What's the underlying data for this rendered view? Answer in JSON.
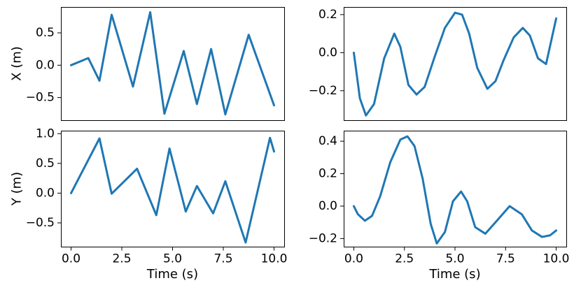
{
  "chart_data": [
    {
      "type": "line",
      "panel": "top-left",
      "ylabel": "X (m)",
      "xlabel": "",
      "xlim": [
        -0.5,
        10.5
      ],
      "ylim": [
        -0.85,
        0.9
      ],
      "yticks": [
        0.5,
        0.0,
        -0.5
      ],
      "ytick_labels": [
        "0.5",
        "0.0",
        "−0.5"
      ],
      "xticks": [],
      "xtick_labels": [],
      "color": "#1f77b4",
      "series": [
        {
          "x": [
            0.0,
            0.85,
            1.4,
            2.0,
            3.05,
            3.9,
            4.6,
            5.55,
            6.2,
            6.9,
            7.6,
            8.75,
            10.0
          ],
          "y": [
            0.0,
            0.11,
            -0.24,
            0.78,
            -0.33,
            0.82,
            -0.75,
            0.22,
            -0.6,
            0.25,
            -0.76,
            0.47,
            -0.62
          ]
        }
      ]
    },
    {
      "type": "line",
      "panel": "top-right",
      "ylabel": "",
      "xlabel": "",
      "xlim": [
        -0.5,
        10.5
      ],
      "ylim": [
        -0.355,
        0.24
      ],
      "yticks": [
        0.2,
        0.0,
        -0.2
      ],
      "ytick_labels": [
        "0.2",
        "0.0",
        "−0.2"
      ],
      "xticks": [],
      "xtick_labels": [],
      "color": "#1f77b4",
      "series": [
        {
          "x": [
            0.0,
            0.3,
            0.6,
            1.0,
            1.5,
            2.0,
            2.3,
            2.7,
            3.1,
            3.5,
            4.0,
            4.5,
            5.0,
            5.35,
            5.7,
            6.1,
            6.6,
            7.0,
            7.4,
            7.9,
            8.35,
            8.7,
            9.1,
            9.5,
            10.0
          ],
          "y": [
            0.0,
            -0.24,
            -0.33,
            -0.27,
            -0.03,
            0.1,
            0.03,
            -0.17,
            -0.22,
            -0.18,
            -0.02,
            0.13,
            0.21,
            0.2,
            0.1,
            -0.08,
            -0.19,
            -0.15,
            -0.04,
            0.08,
            0.13,
            0.09,
            -0.03,
            -0.06,
            0.18
          ]
        }
      ]
    },
    {
      "type": "line",
      "panel": "bottom-left",
      "ylabel": "Y (m)",
      "xlabel": "Time (s)",
      "xlim": [
        -0.5,
        10.5
      ],
      "ylim": [
        -0.9,
        1.05
      ],
      "yticks": [
        1.0,
        0.5,
        0.0,
        -0.5
      ],
      "ytick_labels": [
        "1.0",
        "0.5",
        "0.0",
        "−0.5"
      ],
      "xticks": [
        0.0,
        2.5,
        5.0,
        7.5,
        10.0
      ],
      "xtick_labels": [
        "0.0",
        "2.5",
        "5.0",
        "7.5",
        "10.0"
      ],
      "color": "#1f77b4",
      "series": [
        {
          "x": [
            0.0,
            1.4,
            2.0,
            3.25,
            4.2,
            4.85,
            5.65,
            6.2,
            7.0,
            7.6,
            8.6,
            9.8,
            10.0
          ],
          "y": [
            0.0,
            0.92,
            -0.01,
            0.41,
            -0.37,
            0.75,
            -0.31,
            0.12,
            -0.34,
            0.2,
            -0.83,
            0.93,
            0.7
          ]
        }
      ]
    },
    {
      "type": "line",
      "panel": "bottom-right",
      "ylabel": "",
      "xlabel": "Time (s)",
      "xlim": [
        -0.5,
        10.5
      ],
      "ylim": [
        -0.25,
        0.465
      ],
      "yticks": [
        0.4,
        0.2,
        0.0,
        -0.2
      ],
      "ytick_labels": [
        "0.4",
        "0.2",
        "0.0",
        "−0.2"
      ],
      "xticks": [
        0.0,
        2.5,
        5.0,
        7.5,
        10.0
      ],
      "xtick_labels": [
        "0.0",
        "2.5",
        "5.0",
        "7.5",
        "10.0"
      ],
      "color": "#1f77b4",
      "series": [
        {
          "x": [
            0.0,
            0.2,
            0.55,
            0.9,
            1.3,
            1.8,
            2.3,
            2.65,
            3.0,
            3.4,
            3.8,
            4.1,
            4.5,
            4.9,
            5.3,
            5.6,
            6.0,
            6.5,
            7.0,
            7.7,
            8.3,
            8.8,
            9.3,
            9.7,
            10.0
          ],
          "y": [
            0.0,
            -0.05,
            -0.09,
            -0.06,
            0.06,
            0.27,
            0.41,
            0.43,
            0.37,
            0.17,
            -0.11,
            -0.23,
            -0.16,
            0.03,
            0.09,
            0.03,
            -0.13,
            -0.17,
            -0.1,
            0.0,
            -0.05,
            -0.15,
            -0.19,
            -0.18,
            -0.15
          ]
        }
      ]
    }
  ]
}
